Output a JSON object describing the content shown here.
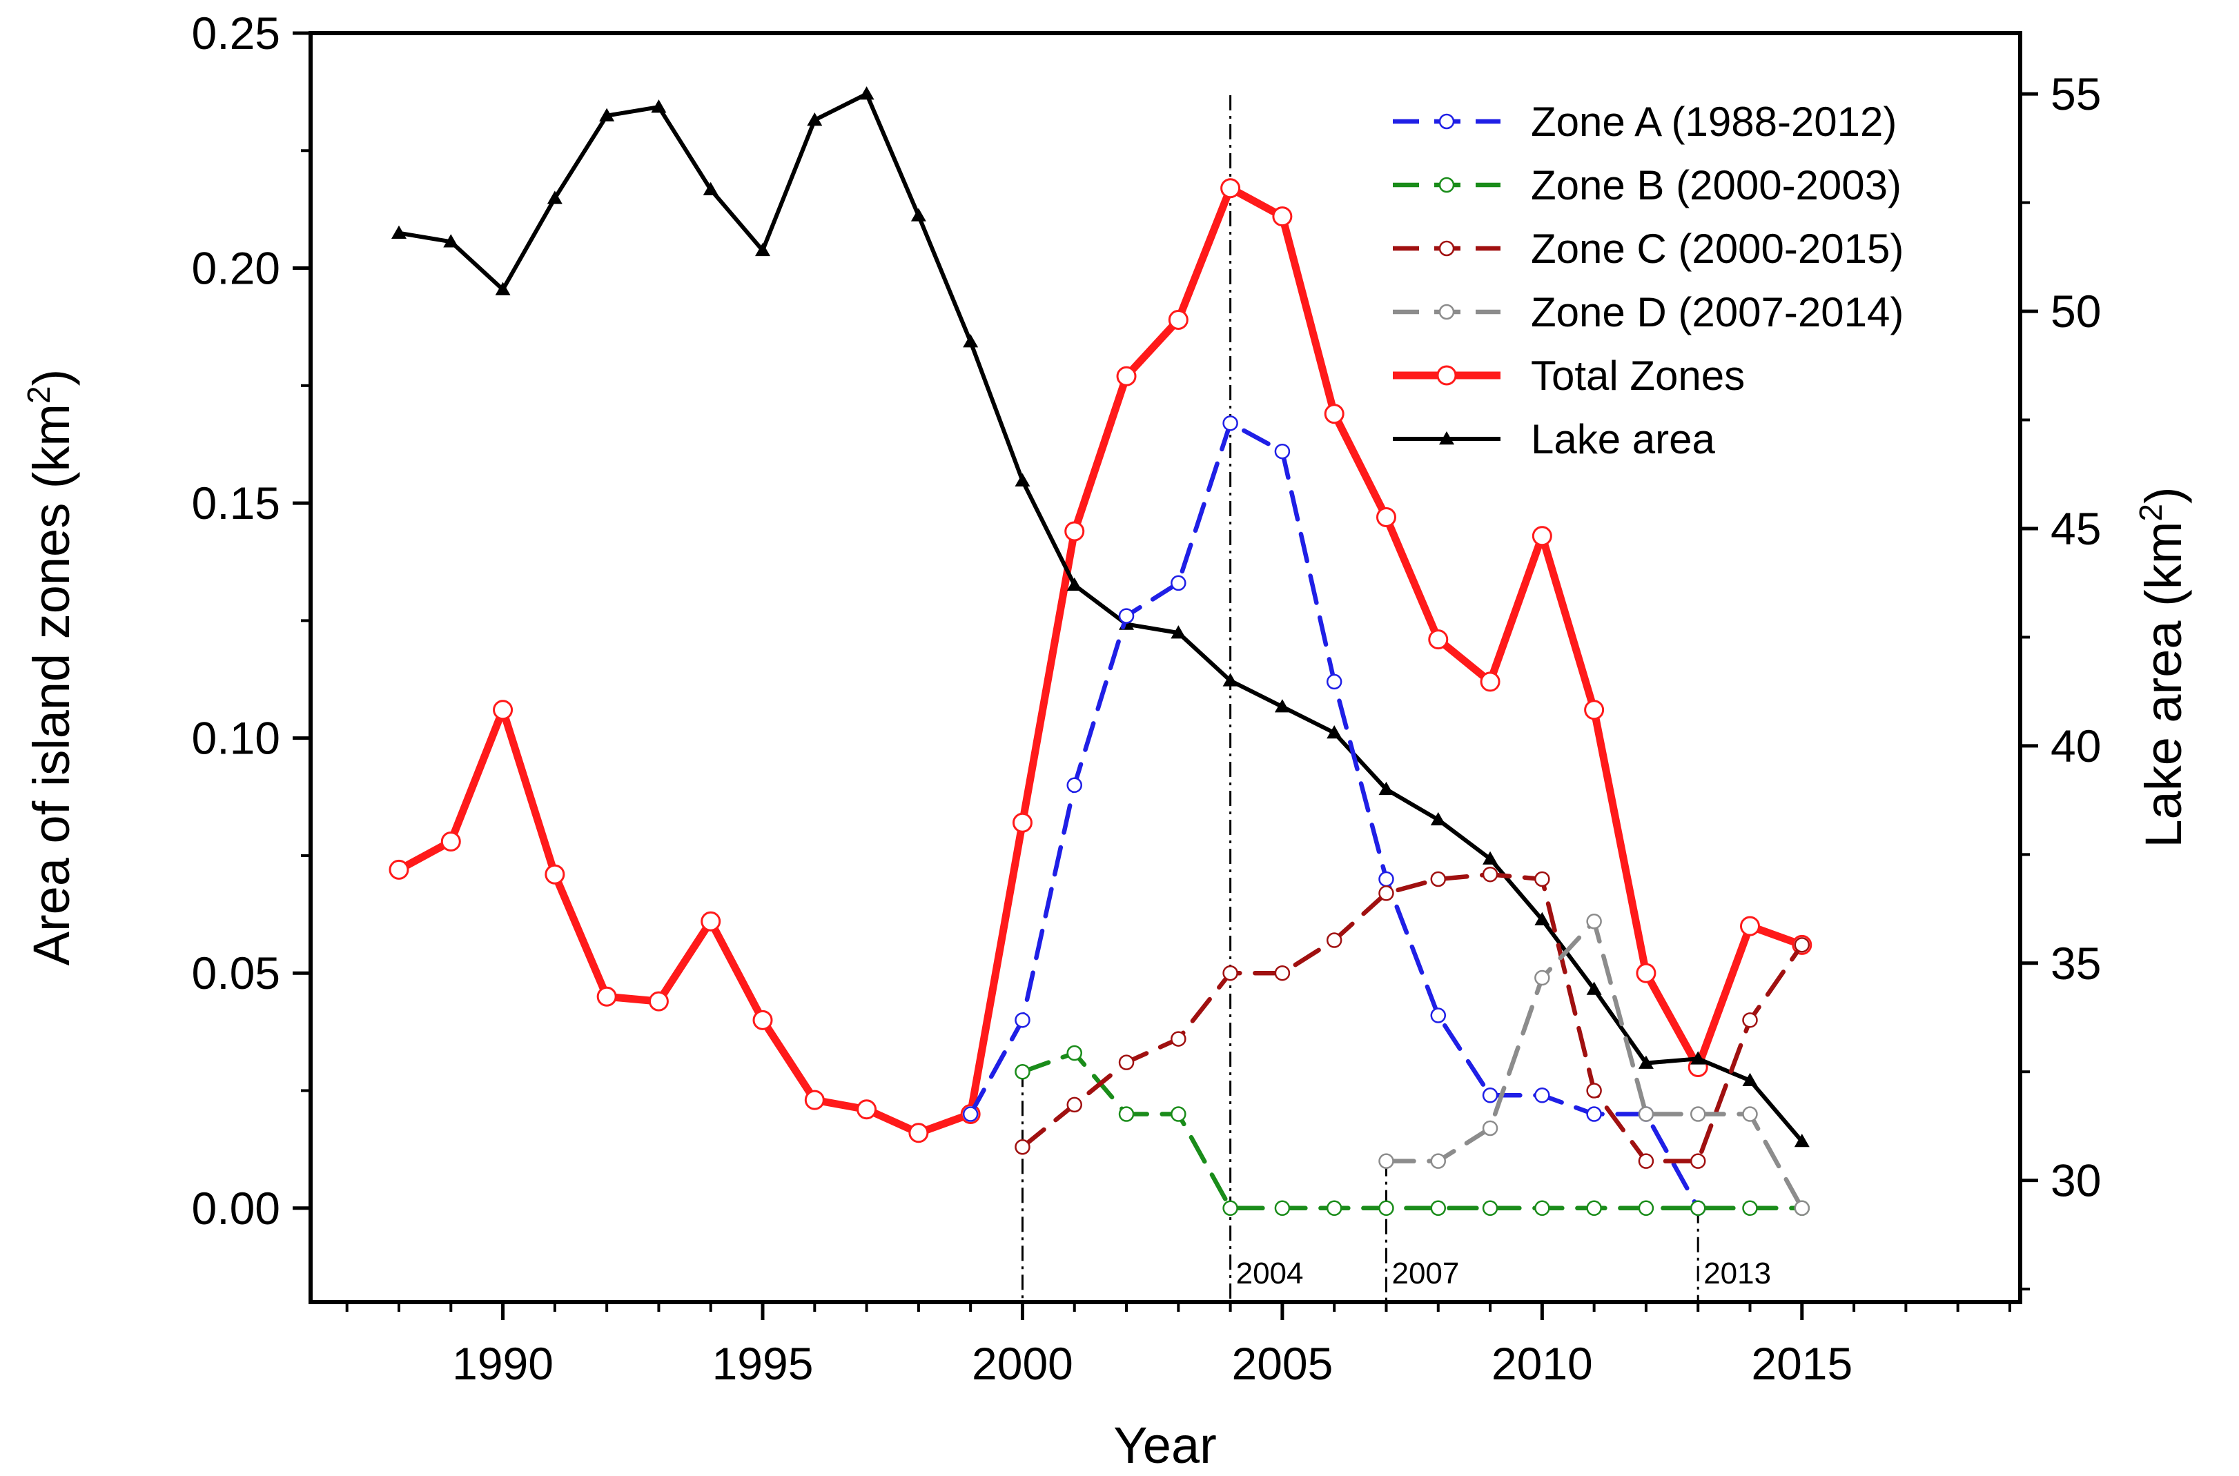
{
  "chart_data": {
    "type": "line",
    "xlabel": "Year",
    "ylabel_left": "Area of island zones (km",
    "ylabel_right": "Lake area (km",
    "ylabel_sup": "2",
    "ylabel_close": ")",
    "xlim": [
      1986.3,
      2019.2
    ],
    "ylim_left": [
      -0.02,
      0.25
    ],
    "ylim_right": [
      27.2,
      56.4
    ],
    "x_ticks": [
      1990,
      1995,
      2000,
      2005,
      2010,
      2015
    ],
    "x_tick_labels": [
      "1990",
      "1995",
      "2000",
      "2005",
      "2010",
      "2015"
    ],
    "y_left_ticks": [
      0.0,
      0.05,
      0.1,
      0.15,
      0.2,
      0.25
    ],
    "y_left_tick_labels": [
      "0.00",
      "0.05",
      "0.10",
      "0.15",
      "0.20",
      "0.25"
    ],
    "y_right_ticks": [
      30,
      35,
      40,
      45,
      50,
      55
    ],
    "y_right_tick_labels": [
      "30",
      "35",
      "40",
      "45",
      "50",
      "55"
    ],
    "legend_position": "top-right",
    "series": [
      {
        "name": "Zone A (1988-2012)",
        "axis": "left",
        "color": "#1f1fe6",
        "style": "dashed",
        "marker": "circle-small",
        "x": [
          1999,
          2000,
          2001,
          2002,
          2003,
          2004,
          2005,
          2006,
          2007,
          2008,
          2009,
          2010,
          2011,
          2012,
          2013
        ],
        "y": [
          0.02,
          0.04,
          0.09,
          0.126,
          0.133,
          0.167,
          0.161,
          0.112,
          0.07,
          0.041,
          0.024,
          0.024,
          0.02,
          0.02,
          0.0
        ]
      },
      {
        "name": "Zone B (2000-2003)",
        "axis": "left",
        "color": "#1a8c1a",
        "style": "dashed",
        "marker": "circle-small",
        "x": [
          2000,
          2001,
          2002,
          2003,
          2004,
          2005,
          2006,
          2007,
          2008,
          2009,
          2010,
          2011,
          2012,
          2013,
          2014,
          2015
        ],
        "y": [
          0.029,
          0.033,
          0.02,
          0.02,
          0.0,
          0.0,
          0.0,
          0.0,
          0.0,
          0.0,
          0.0,
          0.0,
          0.0,
          0.0,
          0.0,
          0.0
        ]
      },
      {
        "name": "Zone C (2000-2015)",
        "axis": "left",
        "color": "#a01010",
        "style": "dashed",
        "marker": "circle-small",
        "x": [
          2000,
          2001,
          2002,
          2003,
          2004,
          2005,
          2006,
          2007,
          2008,
          2009,
          2010,
          2011,
          2012,
          2013,
          2014,
          2015
        ],
        "y": [
          0.013,
          0.022,
          0.031,
          0.036,
          0.05,
          0.05,
          0.057,
          0.067,
          0.07,
          0.071,
          0.07,
          0.025,
          0.01,
          0.01,
          0.04,
          0.056
        ]
      },
      {
        "name": "Zone D (2007-2014)",
        "axis": "left",
        "color": "#8c8c8c",
        "style": "dashed",
        "marker": "circle-small",
        "x": [
          2007,
          2008,
          2009,
          2010,
          2011,
          2012,
          2013,
          2014,
          2015
        ],
        "y": [
          0.01,
          0.01,
          0.017,
          0.049,
          0.061,
          0.02,
          0.02,
          0.02,
          0.0
        ]
      },
      {
        "name": "Total Zones",
        "axis": "left",
        "color": "#ff1a1a",
        "style": "solid-thick",
        "marker": "circle-large",
        "x": [
          1988,
          1989,
          1990,
          1991,
          1992,
          1993,
          1994,
          1995,
          1996,
          1997,
          1998,
          1999,
          2000,
          2001,
          2002,
          2003,
          2004,
          2005,
          2006,
          2007,
          2008,
          2009,
          2010,
          2011,
          2012,
          2013,
          2014,
          2015
        ],
        "y": [
          0.072,
          0.078,
          0.106,
          0.071,
          0.045,
          0.044,
          0.061,
          0.04,
          0.023,
          0.021,
          0.016,
          0.02,
          0.082,
          0.144,
          0.177,
          0.189,
          0.217,
          0.211,
          0.169,
          0.147,
          0.121,
          0.112,
          0.143,
          0.106,
          0.05,
          0.03,
          0.06,
          0.056
        ]
      },
      {
        "name": "Lake area",
        "axis": "right",
        "color": "#000000",
        "style": "solid",
        "marker": "triangle",
        "x": [
          1988,
          1989,
          1990,
          1991,
          1992,
          1993,
          1994,
          1995,
          1996,
          1997,
          1998,
          1999,
          2000,
          2001,
          2002,
          2003,
          2004,
          2005,
          2006,
          2007,
          2008,
          2009,
          2010,
          2011,
          2012,
          2013,
          2014,
          2015
        ],
        "y": [
          51.8,
          51.6,
          50.5,
          52.6,
          54.5,
          54.7,
          52.8,
          51.4,
          54.4,
          55.0,
          52.2,
          49.3,
          46.1,
          43.7,
          42.8,
          42.6,
          41.5,
          40.9,
          40.3,
          39.0,
          38.3,
          37.4,
          36.0,
          34.4,
          32.7,
          32.8,
          32.3,
          30.9
        ]
      }
    ],
    "annotations": [
      {
        "x": 2000,
        "label": ""
      },
      {
        "x": 2004,
        "label": "2004"
      },
      {
        "x": 2007,
        "label": "2007"
      },
      {
        "x": 2013,
        "label": "2013"
      }
    ]
  }
}
